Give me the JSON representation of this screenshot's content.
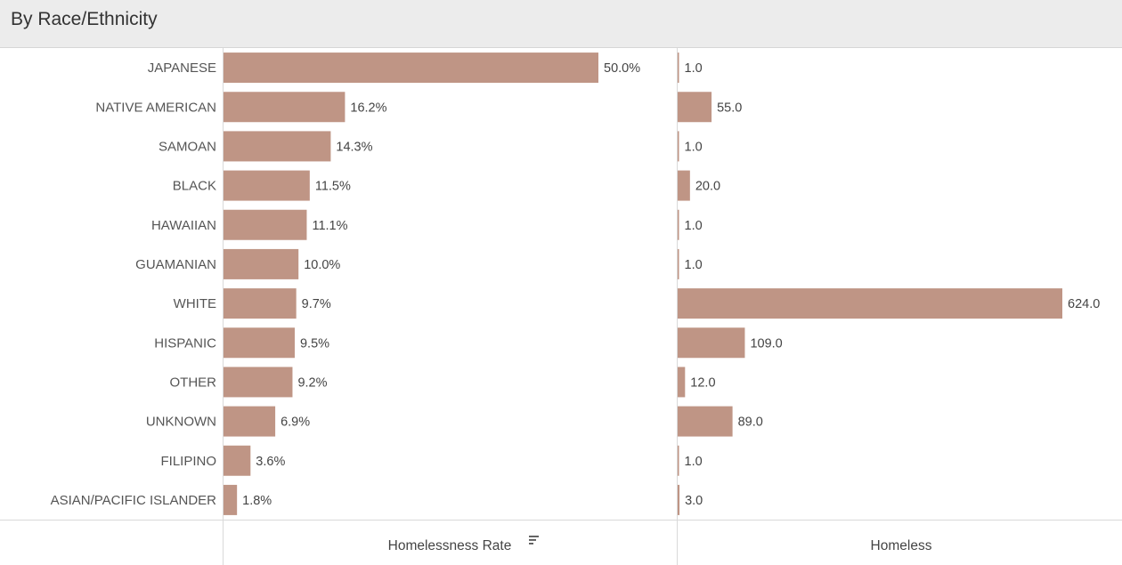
{
  "header": {
    "title": "By Race/Ethnicity"
  },
  "colors": {
    "bar": "#bf9585",
    "divider": "#d9d9d9",
    "header_bg": "#ececec"
  },
  "chart_data": {
    "type": "bar",
    "orientation": "horizontal",
    "categories": [
      "JAPANESE",
      "NATIVE AMERICAN",
      "SAMOAN",
      "BLACK",
      "HAWAIIAN",
      "GUAMANIAN",
      "WHITE",
      "HISPANIC",
      "OTHER",
      "UNKNOWN",
      "FILIPINO",
      "ASIAN/PACIFIC ISLANDER"
    ],
    "series": [
      {
        "name": "Homelessness Rate",
        "values": [
          50.0,
          16.2,
          14.3,
          11.5,
          11.1,
          10.0,
          9.7,
          9.5,
          9.2,
          6.9,
          3.6,
          1.8
        ],
        "labels": [
          "50.0%",
          "16.2%",
          "14.3%",
          "11.5%",
          "11.1%",
          "10.0%",
          "9.7%",
          "9.5%",
          "9.2%",
          "6.9%",
          "3.6%",
          "1.8%"
        ],
        "sorted": true
      },
      {
        "name": "Homeless",
        "values": [
          1.0,
          55.0,
          1.0,
          20.0,
          1.0,
          1.0,
          624.0,
          109.0,
          12.0,
          89.0,
          1.0,
          3.0
        ],
        "labels": [
          "1.0",
          "55.0",
          "1.0",
          "20.0",
          "1.0",
          "1.0",
          "624.0",
          "109.0",
          "12.0",
          "89.0",
          "1.0",
          "3.0"
        ]
      }
    ],
    "xlabel": "",
    "ylabel": "",
    "grid": false
  }
}
